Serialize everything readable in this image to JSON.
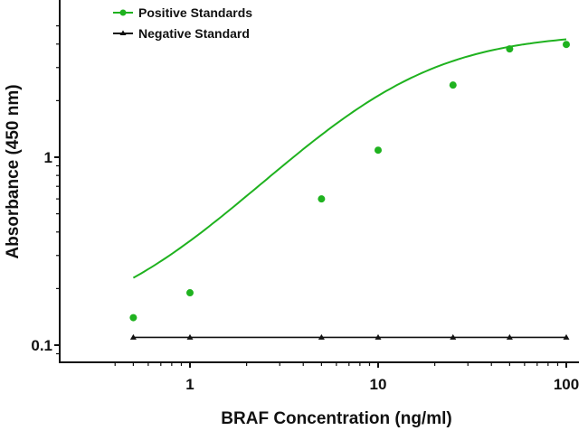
{
  "chart_data": {
    "type": "line",
    "title": "",
    "xlabel": "BRAF Concentration (ng/ml)",
    "ylabel": "Absorbance (450 nm)",
    "xscale": "log",
    "yscale": "log",
    "xlim": [
      0.4,
      110
    ],
    "ylim": [
      0.09,
      5.5
    ],
    "x_ticks": [
      "1",
      "10",
      "100"
    ],
    "y_ticks": [
      "0.1",
      "1"
    ],
    "grid": false,
    "legend_position": "top-left",
    "series": [
      {
        "name": "Positive Standards",
        "color": "#1fb21f",
        "marker": "circle",
        "fit": "4PL sigmoidal curve",
        "x": [
          0.5,
          1,
          5,
          10,
          25,
          50,
          100
        ],
        "values": [
          0.14,
          0.19,
          0.6,
          1.09,
          2.42,
          3.77,
          3.98
        ]
      },
      {
        "name": "Negative Standard",
        "color": "#111111",
        "marker": "triangle",
        "x": [
          0.5,
          1,
          5,
          10,
          25,
          50,
          100
        ],
        "values": [
          0.11,
          0.11,
          0.11,
          0.11,
          0.11,
          0.11,
          0.11
        ]
      }
    ]
  },
  "legend": {
    "items": [
      {
        "label": "Positive Standards",
        "color": "#1fb21f"
      },
      {
        "label": "Negative Standard",
        "color": "#111111"
      }
    ]
  },
  "axes": {
    "x_title": "BRAF Concentration (ng/ml)",
    "y_title": "Absorbance (450 nm)",
    "x_tick_labels": [
      "1",
      "10",
      "100"
    ],
    "y_tick_labels": [
      "0.1",
      "1"
    ]
  }
}
